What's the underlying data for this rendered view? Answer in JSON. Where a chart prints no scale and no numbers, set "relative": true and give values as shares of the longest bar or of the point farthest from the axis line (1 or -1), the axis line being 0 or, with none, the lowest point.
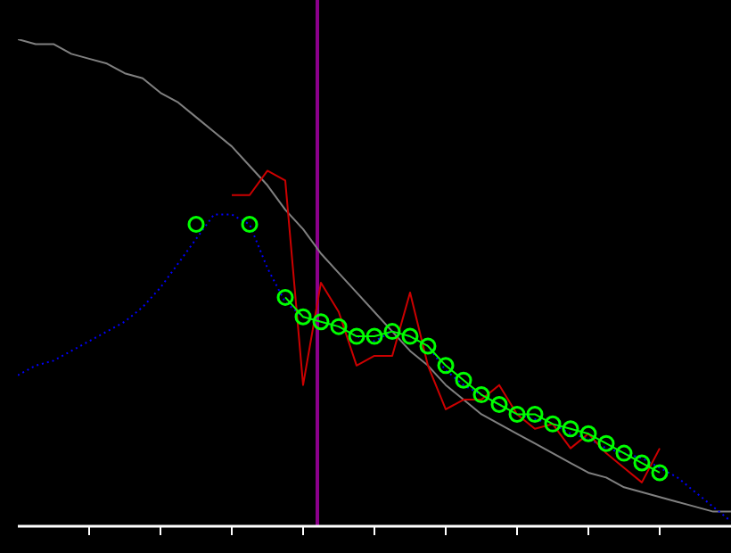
{
  "chart_data": {
    "type": "line",
    "relative": true,
    "categories": [
      null,
      null,
      null,
      null,
      null,
      null,
      null,
      null,
      null,
      null,
      null,
      null,
      null,
      null,
      null,
      null,
      null,
      null,
      null,
      null,
      null,
      null,
      null,
      null,
      null,
      null,
      null,
      null,
      null,
      null,
      null,
      null,
      null,
      null,
      null,
      null,
      null,
      null,
      null,
      null,
      null
    ],
    "series": [
      {
        "color": "#808080",
        "marker": "none",
        "line_style": "solid",
        "values": [
          1.0,
          0.99,
          0.99,
          0.97,
          0.96,
          0.95,
          0.93,
          0.92,
          0.89,
          0.87,
          0.84,
          0.81,
          0.78,
          0.74,
          0.7,
          0.65,
          0.61,
          0.56,
          0.52,
          0.48,
          0.44,
          0.4,
          0.36,
          0.33,
          0.29,
          0.26,
          0.23,
          0.21,
          0.19,
          0.17,
          0.15,
          0.13,
          0.11,
          0.1,
          0.08,
          0.07,
          0.06,
          0.05,
          0.04,
          0.03,
          0.03
        ]
      },
      {
        "color": "#0000ff",
        "marker": "none",
        "line_style": "dotted",
        "values": [
          0.31,
          0.33,
          0.34,
          0.36,
          0.38,
          0.4,
          0.42,
          0.45,
          0.49,
          0.54,
          0.59,
          0.64,
          0.64,
          0.62,
          0.53,
          0.46,
          0.43,
          0.42,
          0.41,
          0.39,
          0.38,
          0.4,
          0.39,
          0.37,
          0.32,
          0.29,
          0.27,
          0.25,
          0.23,
          0.22,
          0.21,
          0.19,
          0.18,
          0.16,
          0.15,
          0.14,
          0.12,
          0.1,
          0.07,
          0.04,
          0.01
        ]
      },
      {
        "color": "#cc0000",
        "marker": "none",
        "line_style": "solid",
        "values": [
          null,
          null,
          null,
          null,
          null,
          null,
          null,
          null,
          null,
          null,
          null,
          null,
          0.68,
          0.68,
          0.73,
          0.71,
          0.29,
          0.5,
          0.44,
          0.33,
          0.35,
          0.35,
          0.48,
          0.33,
          0.24,
          0.26,
          0.26,
          0.29,
          0.23,
          0.2,
          0.21,
          0.16,
          0.19,
          0.15,
          0.12,
          0.09,
          0.16,
          null,
          null,
          null,
          null
        ]
      },
      {
        "color": "#00ff00",
        "marker": "circle",
        "line_style": "solid",
        "values": [
          null,
          null,
          null,
          null,
          null,
          null,
          null,
          null,
          null,
          null,
          0.62,
          null,
          null,
          0.62,
          null,
          0.47,
          0.43,
          0.42,
          0.41,
          0.39,
          0.39,
          0.4,
          0.39,
          0.37,
          0.33,
          0.3,
          0.27,
          0.25,
          0.23,
          0.23,
          0.21,
          0.2,
          0.19,
          0.17,
          0.15,
          0.13,
          0.11,
          null,
          null,
          null,
          null
        ]
      }
    ]
  }
}
